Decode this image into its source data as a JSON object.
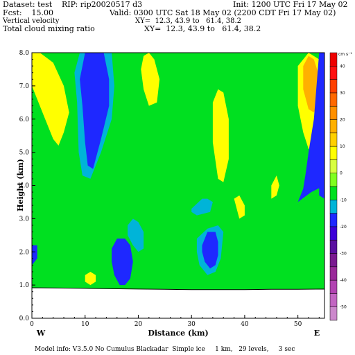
{
  "header": {
    "dataset": "Dataset: test",
    "rip": "RIP: rip20020517 d3",
    "init": "Init: 1200 UTC Fri 17 May 02",
    "fcst": "Fcst:    15.00",
    "valid": "Valid: 0300 UTC Sat 18 May 02 (2200 CDT Fri 17 May 02)",
    "field1": "Vertical velocity",
    "xy1": "XY=  12.3, 43.9 to   61.4, 38.2",
    "field2": "Total cloud mixing ratio",
    "xy2": "XY=  12.3, 43.9 to   61.4, 38.2"
  },
  "footer": {
    "model_info": "Model info: V3.5.0 No Cumulus Blackadar  Simple ice     1 km,   29 levels,     3 sec"
  },
  "colorbar": {
    "unit": "cm s⁻¹",
    "colors": [
      "#cc88cc",
      "#c266c2",
      "#b244b2",
      "#9a2a9a",
      "#7a1a90",
      "#5a10a0",
      "#3c00d8",
      "#1e28ff",
      "#00b4d8",
      "#00e020",
      "#80ff20",
      "#d8ff40",
      "#ffff00",
      "#ffd000",
      "#ffb000",
      "#ff9000",
      "#ff6800",
      "#ff4000",
      "#ff1010",
      "#ee0000"
    ],
    "ticks": [
      -50,
      -40,
      -30,
      -20,
      -10,
      0,
      10,
      20,
      30,
      40
    ]
  },
  "chart_data": {
    "type": "contour",
    "xlabel": "Distance  (km)",
    "ylabel": "Height  (km)",
    "xlim": [
      0,
      55
    ],
    "ylim": [
      0,
      8
    ],
    "xticks": [
      0,
      10,
      20,
      30,
      40,
      50
    ],
    "yticks": [
      0.0,
      1.0,
      2.0,
      3.0,
      4.0,
      5.0,
      6.0,
      7.0,
      8.0
    ],
    "x_endpoints": {
      "left": "W",
      "right": "E"
    },
    "terrain_height_km": [
      0.92,
      0.91,
      0.9,
      0.89,
      0.88,
      0.87,
      0.86,
      0.86,
      0.86,
      0.87,
      0.87,
      0.88
    ],
    "filled_regions": [
      {
        "level": "updraft 10-20",
        "color": "#ffb000",
        "x": [
          0,
          1,
          2,
          4,
          5,
          3,
          1,
          0
        ],
        "y": [
          8,
          8,
          7.6,
          7.2,
          6.8,
          6.6,
          6.8,
          7.2
        ]
      },
      {
        "level": "updraft 0-10",
        "color": "#ffff00",
        "x": [
          0,
          1.5,
          4,
          6,
          7,
          6,
          5,
          4,
          2,
          0
        ],
        "y": [
          8,
          8,
          7.7,
          7,
          6.2,
          5.6,
          5.2,
          5.4,
          6.2,
          7
        ]
      },
      {
        "level": "updraft 0-10",
        "color": "#ffff00",
        "x": [
          50,
          52,
          54,
          55,
          55,
          54,
          53,
          52,
          51,
          50,
          50
        ],
        "y": [
          7.6,
          8,
          7.8,
          7,
          6.2,
          5.4,
          5,
          5.1,
          5.6,
          6.4,
          7.2
        ]
      },
      {
        "level": "updraft 10-20",
        "color": "#ffb000",
        "x": [
          51,
          52,
          53,
          54,
          54,
          53,
          52,
          51
        ],
        "y": [
          7.6,
          7.9,
          7.8,
          7.3,
          6.6,
          6.2,
          6.3,
          6.9
        ]
      },
      {
        "level": "updraft 0-10",
        "color": "#ffff00",
        "x": [
          34,
          35,
          36,
          37,
          37,
          36,
          35,
          34
        ],
        "y": [
          6.5,
          6.9,
          6.8,
          6,
          4.8,
          4.1,
          4.2,
          5.3
        ]
      },
      {
        "level": "updraft 0-10",
        "color": "#ffff00",
        "x": [
          21,
          22,
          23,
          24,
          23.5,
          22,
          21,
          20.5
        ],
        "y": [
          7.9,
          8,
          7.8,
          7.2,
          6.5,
          6.4,
          6.9,
          7.5
        ]
      },
      {
        "level": "updraft 0-10",
        "color": "#ffff00",
        "x": [
          38,
          39,
          40,
          40,
          39
        ],
        "y": [
          3.6,
          3.7,
          3.4,
          3.1,
          3.0
        ]
      },
      {
        "level": "updraft 0-10",
        "color": "#ffff00",
        "x": [
          45,
          46,
          46.5,
          46,
          45
        ],
        "y": [
          4.0,
          4.3,
          4.0,
          3.7,
          3.6
        ]
      },
      {
        "level": "updraft 0-10",
        "color": "#ffff00",
        "x": [
          10,
          11,
          12,
          12,
          11,
          10
        ],
        "y": [
          1.3,
          1.4,
          1.3,
          1.1,
          1.0,
          1.1
        ]
      },
      {
        "level": "downdraft 0-10",
        "color": "#00b4d8",
        "x": [
          9,
          11,
          15,
          15.5,
          15,
          13,
          11,
          9.5,
          8.8,
          8.5,
          8
        ],
        "y": [
          8,
          8,
          8,
          7,
          6,
          5,
          4.2,
          4.3,
          5,
          6.5,
          7.4
        ]
      },
      {
        "level": "downdraft 10-20",
        "color": "#1e28ff",
        "x": [
          10,
          12,
          13.5,
          14.5,
          14.5,
          13,
          11.5,
          10.5,
          10,
          9.5,
          9
        ],
        "y": [
          8,
          8,
          8,
          7.2,
          6.4,
          5.4,
          4.5,
          4.6,
          5.3,
          6.4,
          7.2
        ]
      },
      {
        "level": "downdraft 0-10",
        "color": "#00b4d8",
        "x": [
          30,
          32,
          33,
          34,
          33.5,
          31,
          30
        ],
        "y": [
          3.3,
          3.6,
          3.6,
          3.5,
          3.2,
          3.1,
          3.2
        ]
      },
      {
        "level": "downdraft 0-10",
        "color": "#00b4d8",
        "x": [
          31,
          33,
          35,
          36,
          35.5,
          34.5,
          33,
          31.5,
          31
        ],
        "y": [
          2.4,
          2.7,
          2.8,
          2.6,
          1.8,
          1.4,
          1.3,
          1.6,
          2.0
        ]
      },
      {
        "level": "downdraft 10-20",
        "color": "#1e28ff",
        "x": [
          32,
          33,
          34.5,
          35,
          35,
          34.5,
          33.5,
          32.5,
          32
        ],
        "y": [
          2.2,
          2.6,
          2.6,
          2.3,
          1.9,
          1.6,
          1.5,
          1.7,
          2
        ]
      },
      {
        "level": "downdraft 10-20",
        "color": "#1e28ff",
        "x": [
          15,
          16,
          17.5,
          18.5,
          19,
          18.5,
          17.5,
          16.5,
          15.5,
          15
        ],
        "y": [
          2.1,
          2.4,
          2.4,
          2.2,
          1.7,
          1.2,
          1.0,
          1.0,
          1.3,
          1.7
        ]
      },
      {
        "level": "downdraft 0-10",
        "color": "#00b4d8",
        "x": [
          18,
          19,
          20,
          21,
          21,
          20,
          19,
          18
        ],
        "y": [
          2.8,
          3.0,
          2.9,
          2.6,
          2.1,
          2.0,
          2.2,
          2.5
        ]
      },
      {
        "level": "downdraft 10-20",
        "color": "#1e28ff",
        "x": [
          50,
          52.5,
          55,
          55,
          54,
          53,
          52,
          51.5,
          51
        ],
        "y": [
          3.5,
          3.8,
          4,
          8,
          8,
          6,
          5,
          4.4,
          3.9
        ]
      },
      {
        "level": "downdraft 10-20",
        "color": "#1e28ff",
        "x": [
          0,
          1,
          1,
          0
        ],
        "y": [
          2.2,
          2.2,
          1.8,
          1.6
        ]
      },
      {
        "level": "downdraft 10-20",
        "color": "#1e28ff",
        "x": [
          54,
          55,
          55,
          54
        ],
        "y": [
          4.2,
          4.2,
          3.6,
          3.7
        ]
      }
    ]
  }
}
